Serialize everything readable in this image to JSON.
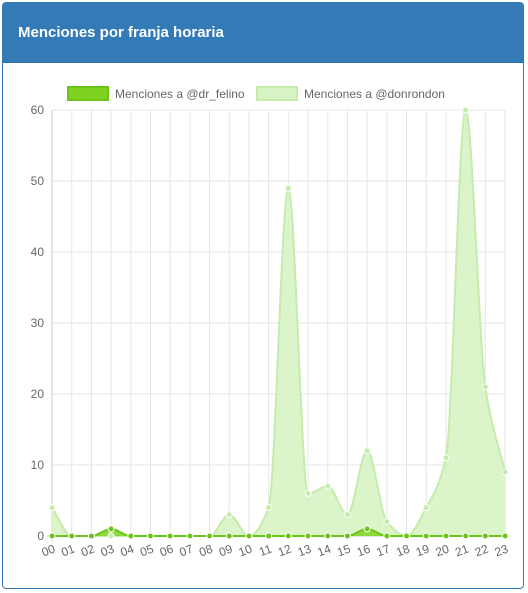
{
  "panel": {
    "title": "Menciones por franja horaria"
  },
  "chart_data": {
    "type": "area",
    "categories": [
      "00",
      "01",
      "02",
      "03",
      "04",
      "05",
      "06",
      "07",
      "08",
      "09",
      "10",
      "11",
      "12",
      "13",
      "14",
      "15",
      "16",
      "17",
      "18",
      "19",
      "20",
      "21",
      "22",
      "23"
    ],
    "series": [
      {
        "name": "Menciones a @dr_felino",
        "values": [
          0,
          0,
          0,
          1,
          0,
          0,
          0,
          0,
          0,
          0,
          0,
          0,
          0,
          0,
          0,
          0,
          1,
          0,
          0,
          0,
          0,
          0,
          0,
          0
        ],
        "fill": "#7ed321",
        "stroke": "#6cc417"
      },
      {
        "name": "Menciones a @donrondon",
        "values": [
          4,
          0,
          0,
          0,
          0,
          0,
          0,
          0,
          0,
          3,
          0,
          4,
          49,
          6,
          7,
          3,
          12,
          2,
          0,
          4,
          11,
          60,
          21,
          9
        ],
        "fill": "#d8f3c3",
        "stroke": "#c5ecaa"
      }
    ],
    "ylim": [
      0,
      60
    ],
    "yticks": [
      0,
      10,
      20,
      30,
      40,
      50,
      60
    ],
    "grid": true,
    "legend_position": "top"
  }
}
